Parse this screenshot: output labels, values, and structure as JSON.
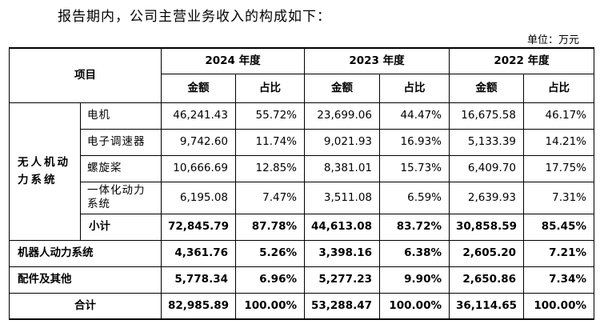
{
  "intro": "报告期内，公司主营业务收入的构成如下：",
  "unit": "单位：万元",
  "header": {
    "item": "项目",
    "years": [
      "2024 年度",
      "2023 年度",
      "2022 年度"
    ],
    "amount": "金额",
    "ratio": "占比"
  },
  "groups": {
    "drone": {
      "label": "无人机动力系统",
      "rows": [
        {
          "name": "电机",
          "v": [
            "46,241.43",
            "55.72%",
            "23,699.06",
            "44.47%",
            "16,675.58",
            "46.17%"
          ]
        },
        {
          "name": "电子调速器",
          "v": [
            "9,742.60",
            "11.74%",
            "9,021.93",
            "16.93%",
            "5,133.39",
            "14.21%"
          ]
        },
        {
          "name": "螺旋桨",
          "v": [
            "10,666.69",
            "12.85%",
            "8,381.01",
            "15.73%",
            "6,409.70",
            "17.75%"
          ]
        },
        {
          "name": "一体化动力系统",
          "v": [
            "6,195.08",
            "7.47%",
            "3,511.08",
            "6.59%",
            "2,639.93",
            "7.31%"
          ]
        }
      ],
      "subtotal": {
        "name": "小计",
        "v": [
          "72,845.79",
          "87.78%",
          "44,613.08",
          "83.72%",
          "30,858.59",
          "85.45%"
        ]
      }
    }
  },
  "robot": {
    "name": "机器人动力系统",
    "v": [
      "4,361.76",
      "5.26%",
      "3,398.16",
      "6.38%",
      "2,605.20",
      "7.21%"
    ]
  },
  "parts": {
    "name": "配件及其他",
    "v": [
      "5,778.34",
      "6.96%",
      "5,277.23",
      "9.90%",
      "2,650.86",
      "7.34%"
    ]
  },
  "total": {
    "name": "合计",
    "v": [
      "82,985.89",
      "100.00%",
      "53,288.47",
      "100.00%",
      "36,114.65",
      "100.00%"
    ]
  }
}
